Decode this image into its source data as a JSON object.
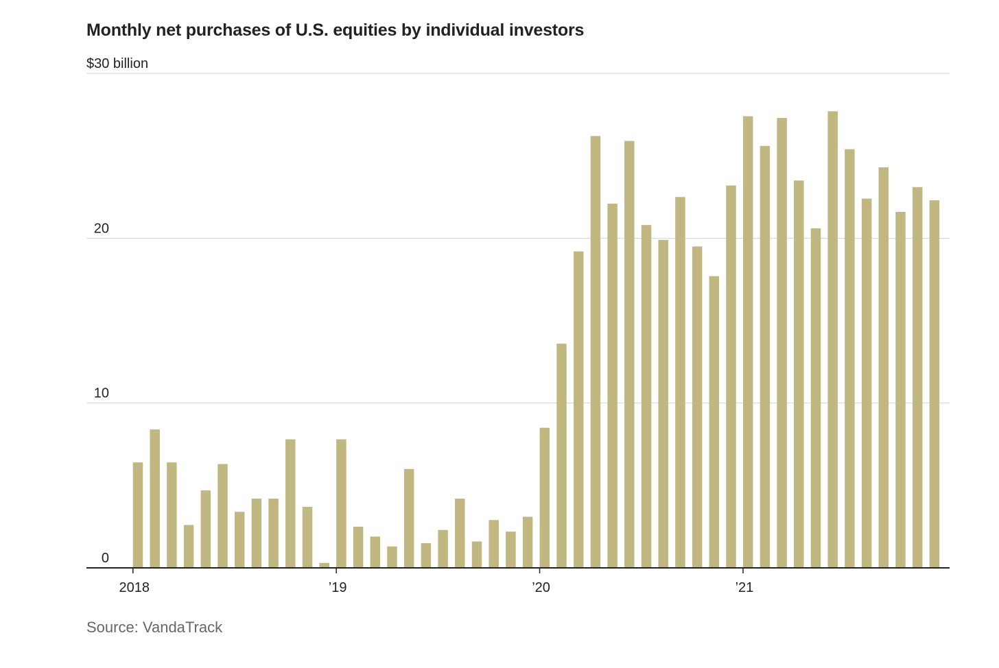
{
  "title": "Monthly net purchases of U.S. equities by individual investors",
  "source": "Source: VandaTrack",
  "chart_data": {
    "type": "bar",
    "title": "Monthly net purchases of U.S. equities by individual investors",
    "ylabel": "$30 billion",
    "ylim": [
      0,
      30
    ],
    "y_ticks": [
      {
        "value": 0,
        "label": "0"
      },
      {
        "value": 10,
        "label": "10"
      },
      {
        "value": 20,
        "label": "20"
      },
      {
        "value": 30,
        "label": "$30 billion"
      }
    ],
    "x_ticks": [
      {
        "index": 0,
        "label": "2018"
      },
      {
        "index": 12,
        "label": "’19"
      },
      {
        "index": 24,
        "label": "’20"
      },
      {
        "index": 36,
        "label": "’21"
      }
    ],
    "grid": true,
    "bar_color": "#c0b880",
    "categories": [
      "2018-01",
      "2018-02",
      "2018-03",
      "2018-04",
      "2018-05",
      "2018-06",
      "2018-07",
      "2018-08",
      "2018-09",
      "2018-10",
      "2018-11",
      "2018-12",
      "2019-01",
      "2019-02",
      "2019-03",
      "2019-04",
      "2019-05",
      "2019-06",
      "2019-07",
      "2019-08",
      "2019-09",
      "2019-10",
      "2019-11",
      "2019-12",
      "2020-01",
      "2020-02",
      "2020-03",
      "2020-04",
      "2020-05",
      "2020-06",
      "2020-07",
      "2020-08",
      "2020-09",
      "2020-10",
      "2020-11",
      "2020-12",
      "2021-01",
      "2021-02",
      "2021-03",
      "2021-04",
      "2021-05",
      "2021-06",
      "2021-07",
      "2021-08",
      "2021-09",
      "2021-10",
      "2021-11",
      "2021-12"
    ],
    "values": [
      6.4,
      8.4,
      6.4,
      2.6,
      4.7,
      6.3,
      3.4,
      4.2,
      4.2,
      7.8,
      3.7,
      0.3,
      7.8,
      2.5,
      1.9,
      1.3,
      6.0,
      1.5,
      2.3,
      4.2,
      1.6,
      2.9,
      2.2,
      3.1,
      8.5,
      13.6,
      19.2,
      26.2,
      22.1,
      25.9,
      20.8,
      19.9,
      22.5,
      19.5,
      17.7,
      23.2,
      27.4,
      25.6,
      27.3,
      23.5,
      20.6,
      27.7,
      25.4,
      22.4,
      24.3,
      21.6,
      23.1,
      22.3
    ]
  }
}
